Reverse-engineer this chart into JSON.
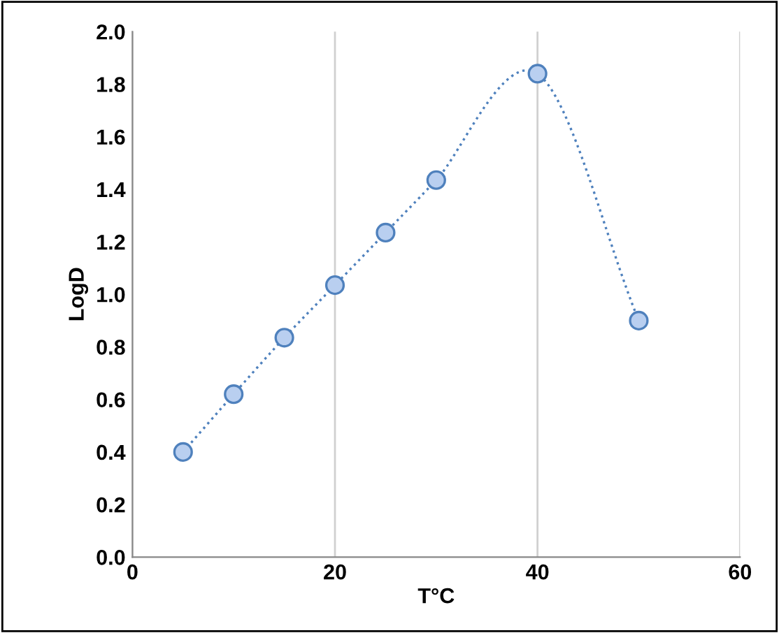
{
  "chart_data": {
    "type": "line",
    "xlabel": "T°C",
    "ylabel": "LogD",
    "x": [
      5,
      10,
      15,
      20,
      25,
      30,
      40,
      50
    ],
    "series": [
      {
        "color": "#4f81bd",
        "values": [
          0.4,
          0.62,
          0.835,
          1.035,
          1.235,
          1.435,
          1.84,
          0.9
        ]
      }
    ],
    "xlim": [
      0,
      60
    ],
    "xticks": [
      0,
      20,
      40,
      60
    ],
    "ylim": [
      0,
      2.0
    ],
    "yticks": [
      {
        "value": 0,
        "label": "0.0"
      },
      {
        "value": 0.2,
        "label": "0.2"
      },
      {
        "value": 0.4,
        "label": "0.4"
      },
      {
        "value": 0.6,
        "label": "0.6"
      },
      {
        "value": 0.8,
        "label": "0.8"
      },
      {
        "value": 1.0,
        "label": "1.0"
      },
      {
        "value": 1.2,
        "label": "1.2"
      },
      {
        "value": 1.4,
        "label": "1.4"
      },
      {
        "value": 1.6,
        "label": "1.6"
      },
      {
        "value": 1.8,
        "label": "1.8"
      },
      {
        "value": 2.0,
        "label": "2.0"
      }
    ],
    "grid": "x",
    "marker": "circle",
    "line_style": "dotted"
  }
}
